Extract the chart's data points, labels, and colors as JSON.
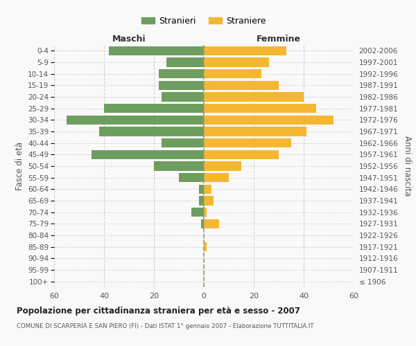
{
  "age_groups": [
    "100+",
    "95-99",
    "90-94",
    "85-89",
    "80-84",
    "75-79",
    "70-74",
    "65-69",
    "60-64",
    "55-59",
    "50-54",
    "45-49",
    "40-44",
    "35-39",
    "30-34",
    "25-29",
    "20-24",
    "15-19",
    "10-14",
    "5-9",
    "0-4"
  ],
  "birth_years": [
    "≤ 1906",
    "1907-1911",
    "1912-1916",
    "1917-1921",
    "1922-1926",
    "1927-1931",
    "1932-1936",
    "1937-1941",
    "1942-1946",
    "1947-1951",
    "1952-1956",
    "1957-1961",
    "1962-1966",
    "1967-1971",
    "1972-1976",
    "1977-1981",
    "1982-1986",
    "1987-1991",
    "1992-1996",
    "1997-2001",
    "2002-2006"
  ],
  "males": [
    0,
    0,
    0,
    0,
    0,
    1,
    5,
    2,
    2,
    10,
    20,
    45,
    17,
    42,
    55,
    40,
    17,
    18,
    18,
    15,
    38
  ],
  "females": [
    0,
    0,
    0,
    1,
    0,
    6,
    1,
    4,
    3,
    10,
    15,
    30,
    35,
    41,
    52,
    45,
    40,
    30,
    23,
    26,
    33
  ],
  "male_color": "#6e9e5f",
  "female_color": "#f5b731",
  "background_color": "#f9f9f9",
  "grid_color": "#cccccc",
  "title_main": "Popolazione per cittadinanza straniera per età e sesso - 2007",
  "title_sub": "COMUNE DI SCARPERIA E SAN PIERO (FI) - Dati ISTAT 1° gennaio 2007 - Elaborazione TUTTITALIA.IT",
  "xlabel_left": "Maschi",
  "xlabel_right": "Femmine",
  "ylabel_left": "Fasce di età",
  "ylabel_right": "Anni di nascita",
  "legend_male": "Stranieri",
  "legend_female": "Straniere",
  "xlim": 60,
  "bar_height": 0.8
}
